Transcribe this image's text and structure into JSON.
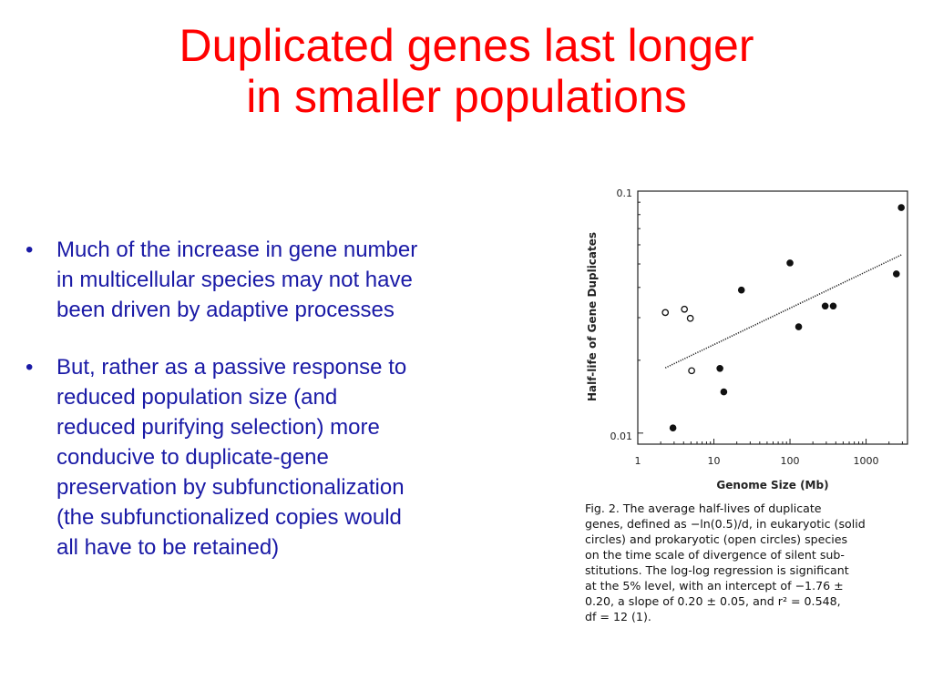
{
  "slide": {
    "title_lines": [
      "Duplicated genes last longer",
      "in smaller populations"
    ],
    "bullets": [
      {
        "lines": [
          "Much of the increase in gene number",
          "in multicellular species may not have",
          "been driven by adaptive processes"
        ]
      },
      {
        "lines": [
          "But, rather as a passive response to",
          "reduced population size (and",
          "reduced purifying selection) more",
          "conducive to duplicate-gene",
          "preservation by subfunctionalization",
          "(the subfunctionalized copies would",
          "all have to be retained)"
        ]
      }
    ],
    "bullet_glyph": "•"
  },
  "figure": {
    "caption_lines": [
      "Fig. 2. The average half-lives of duplicate",
      "genes, defined as −ln(0.5)/d, in eukaryotic (solid",
      "circles) and prokaryotic (open circles) species",
      "on the time scale of divergence of silent sub-",
      "stitutions. The log-log regression is significant",
      "at the 5% level, with an intercept of −1.76 ±",
      "0.20, a slope of 0.20 ± 0.05, and r² = 0.548,",
      "df = 12 (1)."
    ]
  },
  "chart_data": {
    "type": "scatter",
    "title": "",
    "xlabel": "Genome Size (Mb)",
    "ylabel": "Half-life of Gene Duplicates",
    "x_scale": "log",
    "y_scale": "log",
    "xlim": [
      1,
      3500
    ],
    "ylim": [
      0.009,
      0.1
    ],
    "x_ticks": [
      "1",
      "10",
      "100",
      "1000"
    ],
    "y_ticks": [
      "0.1",
      "0.01"
    ],
    "grid": false,
    "series": [
      {
        "style": "solid",
        "points": [
          {
            "x": 2.9,
            "y": 0.0105
          },
          {
            "x": 12,
            "y": 0.0185
          },
          {
            "x": 13.5,
            "y": 0.0148
          },
          {
            "x": 23,
            "y": 0.039
          },
          {
            "x": 100,
            "y": 0.0505
          },
          {
            "x": 130,
            "y": 0.0275
          },
          {
            "x": 290,
            "y": 0.0335
          },
          {
            "x": 370,
            "y": 0.0335
          },
          {
            "x": 2500,
            "y": 0.0455
          },
          {
            "x": 2900,
            "y": 0.0855
          }
        ]
      },
      {
        "style": "open",
        "points": [
          {
            "x": 2.3,
            "y": 0.0315
          },
          {
            "x": 4.1,
            "y": 0.0325
          },
          {
            "x": 4.9,
            "y": 0.0298
          },
          {
            "x": 5.1,
            "y": 0.0181
          }
        ]
      }
    ],
    "regression": {
      "label": "log-log regression",
      "x_range": [
        2.3,
        2900
      ],
      "y_range": [
        0.0186,
        0.0545
      ]
    }
  }
}
